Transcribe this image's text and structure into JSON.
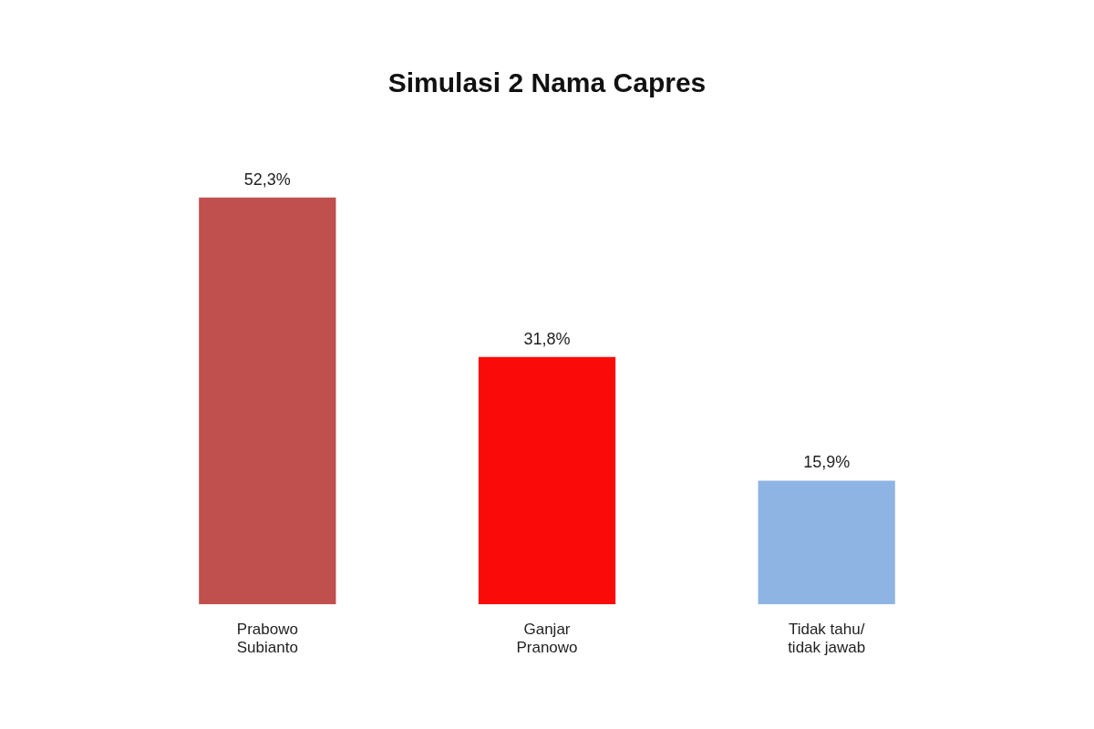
{
  "chart_data": {
    "type": "bar",
    "title": "Simulasi 2 Nama Capres",
    "categories": [
      "Prabowo Subianto",
      "Ganjar Pranowo",
      "Tidak tahu/ tidak jawab"
    ],
    "values": [
      52.3,
      31.8,
      15.9
    ],
    "colors": [
      "#c0504d",
      "#fb0a0a",
      "#8eb4e3"
    ],
    "value_labels": [
      "52,3%",
      "31,8%",
      "15,9%"
    ],
    "grid": false,
    "legend": false
  }
}
